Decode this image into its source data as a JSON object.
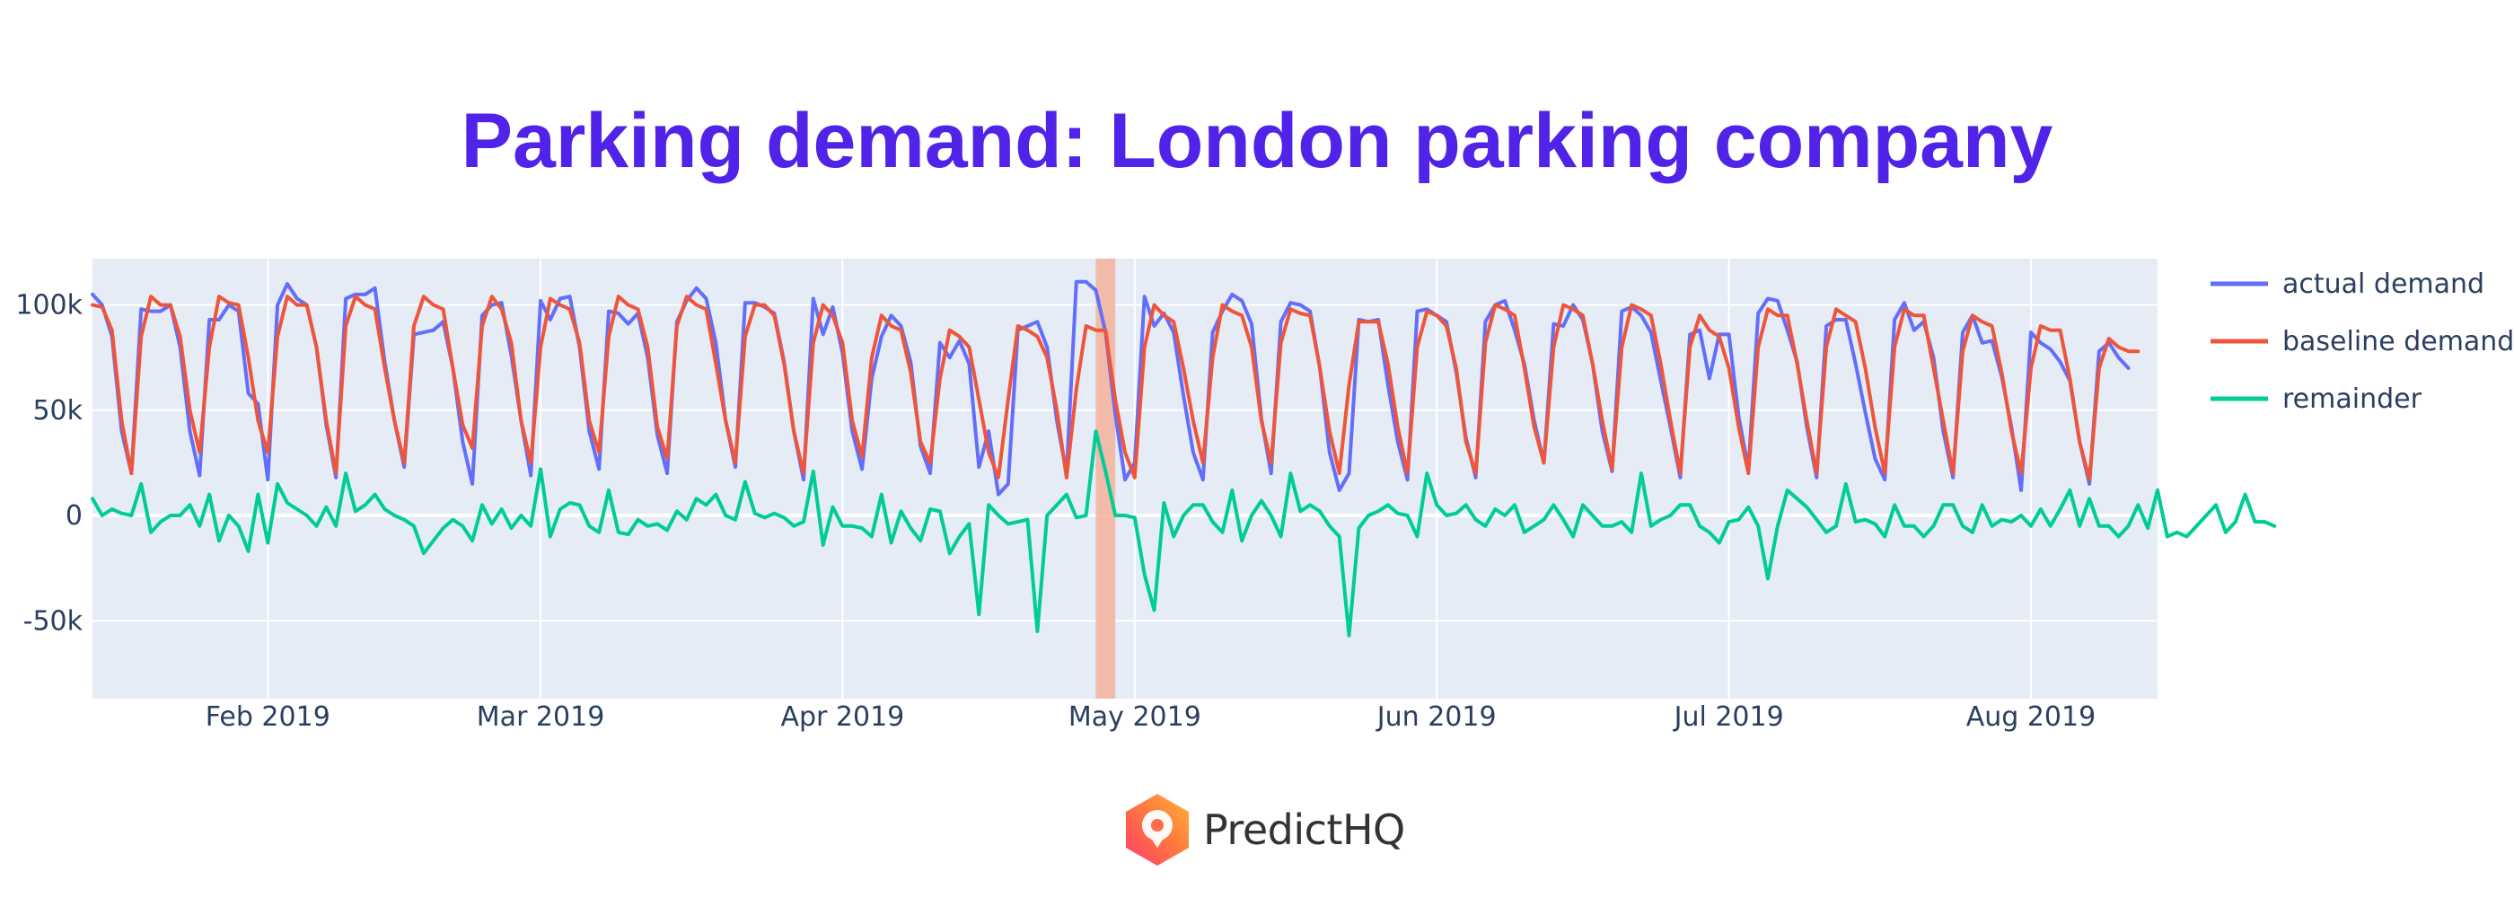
{
  "title": "Parking demand: London parking company",
  "brand": {
    "name": "PredictHQ",
    "colors": [
      "#ff3d6b",
      "#ff7a3d",
      "#ffb43d"
    ]
  },
  "chart_data": {
    "type": "line",
    "title": "Parking demand: London parking company",
    "xlabel": "",
    "ylabel": "",
    "x_start": "2019-01-14",
    "x_end": "2019-08-14",
    "xlim": [
      "2019-01-14",
      "2019-08-14"
    ],
    "ylim": [
      -87000,
      122000
    ],
    "x_ticks": [
      {
        "label": "Feb 2019",
        "date": "2019-02-01"
      },
      {
        "label": "Mar 2019",
        "date": "2019-03-01"
      },
      {
        "label": "Apr 2019",
        "date": "2019-04-01"
      },
      {
        "label": "May 2019",
        "date": "2019-05-01"
      },
      {
        "label": "Jun 2019",
        "date": "2019-06-01"
      },
      {
        "label": "Jul 2019",
        "date": "2019-07-01"
      },
      {
        "label": "Aug 2019",
        "date": "2019-08-01"
      }
    ],
    "y_ticks": [
      {
        "label": "100k",
        "value": 100000
      },
      {
        "label": "50k",
        "value": 50000
      },
      {
        "label": "0",
        "value": 0
      },
      {
        "label": "-50k",
        "value": -50000
      }
    ],
    "grid": true,
    "legend_position": "right",
    "highlight_band": {
      "start": "2019-04-27",
      "end": "2019-04-29",
      "color": "#f4b19a"
    },
    "series": [
      {
        "name": "actual demand",
        "color": "#636efa",
        "values": [
          105000,
          100000,
          85000,
          40000,
          20000,
          98000,
          97000,
          97000,
          100000,
          80000,
          40000,
          19000,
          93000,
          93000,
          100000,
          97000,
          58000,
          53000,
          17000,
          100000,
          110000,
          103000,
          100000,
          80000,
          43000,
          18000,
          103000,
          105000,
          105000,
          108000,
          73000,
          45000,
          23000,
          86000,
          87000,
          88000,
          92000,
          70000,
          35000,
          15000,
          95000,
          100000,
          101000,
          76000,
          45000,
          19000,
          102000,
          93000,
          103000,
          104000,
          80000,
          40000,
          22000,
          97000,
          96000,
          91000,
          96000,
          75000,
          38000,
          20000,
          92000,
          102000,
          108000,
          103000,
          82000,
          45000,
          23000,
          101000,
          101000,
          99000,
          96000,
          73000,
          40000,
          17000,
          103000,
          86000,
          99000,
          77000,
          40000,
          22000,
          65000,
          85000,
          95000,
          90000,
          73000,
          33000,
          20000,
          82000,
          75000,
          83000,
          72000,
          23000,
          40000,
          10000,
          15000,
          88000,
          90000,
          92000,
          80000,
          45000,
          20000,
          111000,
          111000,
          107000,
          87000,
          48000,
          17000,
          25000,
          104000,
          90000,
          96000,
          87000,
          57000,
          30000,
          17000,
          87000,
          97000,
          105000,
          102000,
          91000,
          46000,
          20000,
          92000,
          101000,
          100000,
          97000,
          70000,
          30000,
          12000,
          20000,
          93000,
          92000,
          93000,
          62000,
          35000,
          17000,
          97000,
          98000,
          95000,
          92000,
          68000,
          37000,
          18000,
          92000,
          100000,
          102000,
          88000,
          72000,
          45000,
          25000,
          91000,
          90000,
          100000,
          93000,
          72000,
          40000,
          21000,
          97000,
          99000,
          95000,
          87000,
          64000,
          42000,
          18000,
          86000,
          88000,
          65000,
          86000,
          86000,
          47000,
          22000,
          96000,
          103000,
          102000,
          88000,
          73000,
          42000,
          18000,
          90000,
          93000,
          93000,
          72000,
          49000,
          27000,
          17000,
          93000,
          101000,
          88000,
          92000,
          75000,
          40000,
          18000,
          87000,
          95000,
          82000,
          83000,
          66000,
          42000,
          12000,
          87000,
          82000,
          79000,
          73000,
          64000,
          35000,
          15000,
          78000,
          82000,
          75000,
          70000
        ],
        "x_start": "2019-01-14",
        "x_step_days": 1
      },
      {
        "name": "baseline demand",
        "color": "#ef553b",
        "values": [
          100000,
          99000,
          88000,
          45000,
          20000,
          85000,
          104000,
          100000,
          100000,
          85000,
          50000,
          30000,
          80000,
          104000,
          101000,
          100000,
          75000,
          45000,
          30000,
          85000,
          104000,
          100000,
          100000,
          80000,
          45000,
          20000,
          90000,
          104000,
          100000,
          98000,
          70000,
          45000,
          25000,
          90000,
          104000,
          100000,
          98000,
          70000,
          43000,
          32000,
          90000,
          104000,
          98000,
          82000,
          45000,
          25000,
          80000,
          103000,
          100000,
          98000,
          82000,
          45000,
          30000,
          85000,
          104000,
          100000,
          98000,
          80000,
          42000,
          27000,
          90000,
          104000,
          100000,
          98000,
          72000,
          45000,
          25000,
          85000,
          100000,
          100000,
          95000,
          72000,
          40000,
          20000,
          82000,
          100000,
          95000,
          82000,
          45000,
          28000,
          75000,
          95000,
          90000,
          88000,
          68000,
          35000,
          25000,
          65000,
          88000,
          85000,
          80000,
          55000,
          30000,
          18000,
          55000,
          90000,
          88000,
          85000,
          75000,
          50000,
          18000,
          60000,
          90000,
          88000,
          88000,
          55000,
          30000,
          18000,
          80000,
          100000,
          95000,
          92000,
          70000,
          45000,
          25000,
          75000,
          100000,
          97000,
          95000,
          80000,
          45000,
          25000,
          82000,
          98000,
          96000,
          95000,
          70000,
          40000,
          20000,
          62000,
          92000,
          92000,
          92000,
          72000,
          42000,
          20000,
          80000,
          97000,
          95000,
          90000,
          70000,
          35000,
          20000,
          82000,
          100000,
          98000,
          95000,
          70000,
          42000,
          25000,
          80000,
          100000,
          98000,
          95000,
          72000,
          45000,
          22000,
          80000,
          100000,
          98000,
          95000,
          72000,
          45000,
          20000,
          80000,
          95000,
          88000,
          85000,
          70000,
          42000,
          20000,
          80000,
          98000,
          95000,
          95000,
          72000,
          45000,
          20000,
          80000,
          98000,
          95000,
          92000,
          70000,
          42000,
          20000,
          80000,
          98000,
          95000,
          95000,
          70000,
          45000,
          20000,
          78000,
          95000,
          92000,
          90000,
          68000,
          40000,
          20000,
          70000,
          90000,
          88000,
          88000,
          65000,
          35000,
          17000,
          70000,
          84000,
          80000,
          78000,
          78000
        ],
        "x_start": "2019-01-14",
        "x_step_days": 1
      },
      {
        "name": "remainder",
        "color": "#00cc96",
        "values": [
          8000,
          0,
          3000,
          1000,
          0,
          15000,
          -8000,
          -3000,
          0,
          0,
          5000,
          -5000,
          10000,
          -12000,
          0,
          -5000,
          -17000,
          10000,
          -13000,
          15000,
          6000,
          3000,
          0,
          -5000,
          4000,
          -5000,
          20000,
          2000,
          5000,
          10000,
          3000,
          0,
          -2000,
          -5000,
          -18000,
          -12000,
          -6000,
          -2000,
          -5000,
          -12000,
          5000,
          -4000,
          3000,
          -6000,
          0,
          -5000,
          22000,
          -10000,
          3000,
          6000,
          5000,
          -5000,
          -8000,
          12000,
          -8000,
          -9000,
          -2000,
          -5000,
          -4000,
          -7000,
          2000,
          -2000,
          8000,
          5000,
          10000,
          0,
          -2000,
          16000,
          1000,
          -1000,
          1000,
          -1000,
          -5000,
          -3000,
          21000,
          -14000,
          4000,
          -5000,
          -5000,
          -6000,
          -10000,
          10000,
          -13000,
          2000,
          -6000,
          -12000,
          3000,
          2000,
          -18000,
          -10000,
          -4000,
          -47000,
          5000,
          0,
          -4000,
          -3000,
          -2000,
          -55000,
          0,
          5000,
          10000,
          -1000,
          0,
          40000,
          21000,
          0,
          0,
          -1000,
          -28000,
          -45000,
          6000,
          -10000,
          0,
          5000,
          5000,
          -3000,
          -8000,
          12000,
          -12000,
          0,
          7000,
          0,
          -10000,
          20000,
          2000,
          5000,
          2000,
          -5000,
          -10000,
          -57000,
          -6000,
          0,
          2000,
          5000,
          1000,
          0,
          -10000,
          20000,
          5000,
          0,
          1000,
          5000,
          -2000,
          -5000,
          3000,
          0,
          5000,
          -8000,
          -5000,
          -2000,
          5000,
          -2000,
          -10000,
          5000,
          0,
          -5000,
          -5000,
          -3000,
          -8000,
          20000,
          -5000,
          -2000,
          0,
          5000,
          5000,
          -5000,
          -8000,
          -13000,
          -3000,
          -2000,
          4000,
          -5000,
          -30000,
          -5000,
          12000,
          8000,
          4000,
          -2000,
          -8000,
          -5000,
          15000,
          -3000,
          -2000,
          -4000,
          -10000,
          5000,
          -5000,
          -5000,
          -10000,
          -5000,
          5000,
          5000,
          -5000,
          -8000,
          5000,
          -5000,
          -2000,
          -3000,
          0,
          -5000,
          3000,
          -5000,
          3000,
          12000,
          -5000,
          8000,
          -5000,
          -5000,
          -10000,
          -5000,
          5000,
          -6000,
          12000,
          -10000,
          -8000,
          -10000,
          -5000,
          0,
          5000,
          -8000,
          -3000,
          10000,
          -3000,
          -3000,
          -5000
        ],
        "x_start": "2019-01-14",
        "x_step_days": 1
      }
    ]
  }
}
